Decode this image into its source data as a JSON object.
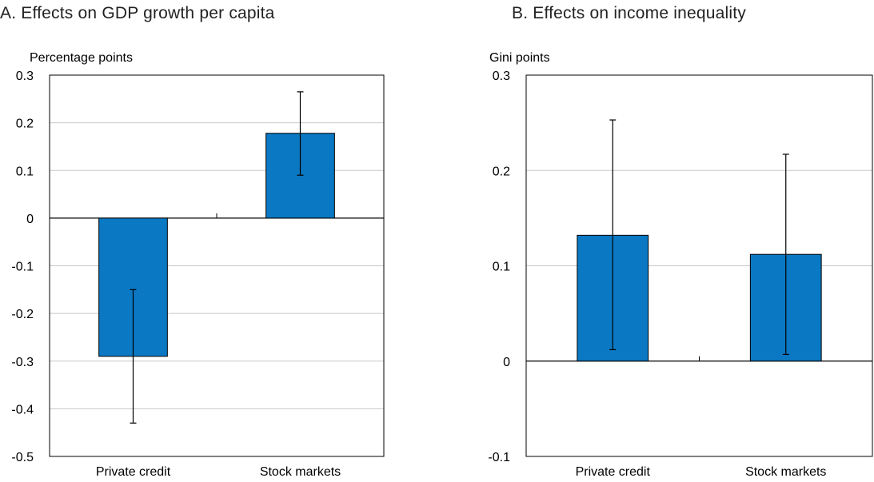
{
  "chart_data": [
    {
      "type": "bar",
      "title": "A. Effects on GDP growth per capita",
      "ylabel": "Percentage points",
      "xlabel": "",
      "categories": [
        "Private credit",
        "Stock markets"
      ],
      "values": [
        -0.29,
        0.178
      ],
      "error_low": [
        -0.43,
        0.09
      ],
      "error_high": [
        -0.15,
        0.265
      ],
      "ylim": [
        -0.5,
        0.3
      ],
      "yticks": [
        0.3,
        0.2,
        0.1,
        0,
        -0.1,
        -0.2,
        -0.3,
        -0.4,
        -0.5
      ],
      "ytick_labels": [
        "0.3",
        "0.2",
        "0.1",
        "0",
        "-0.1",
        "-0.2",
        "-0.3",
        "-0.4",
        "-0.5"
      ],
      "grid": true,
      "bar_color": "#0a78c2"
    },
    {
      "type": "bar",
      "title": "B. Effects on income inequality",
      "ylabel": "Gini points",
      "xlabel": "",
      "categories": [
        "Private credit",
        "Stock markets"
      ],
      "values": [
        0.132,
        0.112
      ],
      "error_low": [
        0.012,
        0.007
      ],
      "error_high": [
        0.253,
        0.217
      ],
      "ylim": [
        -0.1,
        0.3
      ],
      "yticks": [
        0.3,
        0.2,
        0.1,
        0,
        -0.1
      ],
      "ytick_labels": [
        "0.3",
        "0.2",
        "0.1",
        "0",
        "-0.1"
      ],
      "grid": true,
      "bar_color": "#0a78c2"
    }
  ]
}
